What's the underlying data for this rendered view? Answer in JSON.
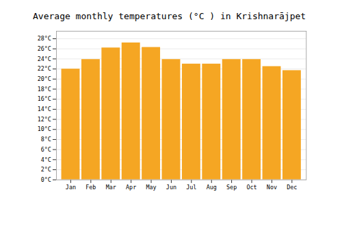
{
  "chart_data": {
    "type": "bar",
    "title": "Average monthly temperatures (°C ) in Krishnarājpet",
    "categories": [
      "Jan",
      "Feb",
      "Mar",
      "Apr",
      "May",
      "Jun",
      "Jul",
      "Aug",
      "Sep",
      "Oct",
      "Nov",
      "Dec"
    ],
    "values": [
      22.0,
      23.9,
      26.2,
      27.2,
      26.3,
      23.9,
      23.0,
      23.0,
      23.9,
      23.9,
      22.5,
      21.7
    ],
    "color": "#F5A623",
    "ylim": [
      0,
      29.5
    ],
    "yticks": [
      {
        "value": 0,
        "label": "0°C"
      },
      {
        "value": 2,
        "label": "2°C"
      },
      {
        "value": 4,
        "label": "4°C"
      },
      {
        "value": 6,
        "label": "6°C"
      },
      {
        "value": 8,
        "label": "8°C"
      },
      {
        "value": 10,
        "label": "10°C"
      },
      {
        "value": 12,
        "label": "12°C"
      },
      {
        "value": 14,
        "label": "14°C"
      },
      {
        "value": 16,
        "label": "16°C"
      },
      {
        "value": 18,
        "label": "18°C"
      },
      {
        "value": 20,
        "label": "20°C"
      },
      {
        "value": 22,
        "label": "22°C"
      },
      {
        "value": 24,
        "label": "24°C"
      },
      {
        "value": 26,
        "label": "26°C"
      },
      {
        "value": 28,
        "label": "28°C"
      }
    ],
    "grid": true
  }
}
